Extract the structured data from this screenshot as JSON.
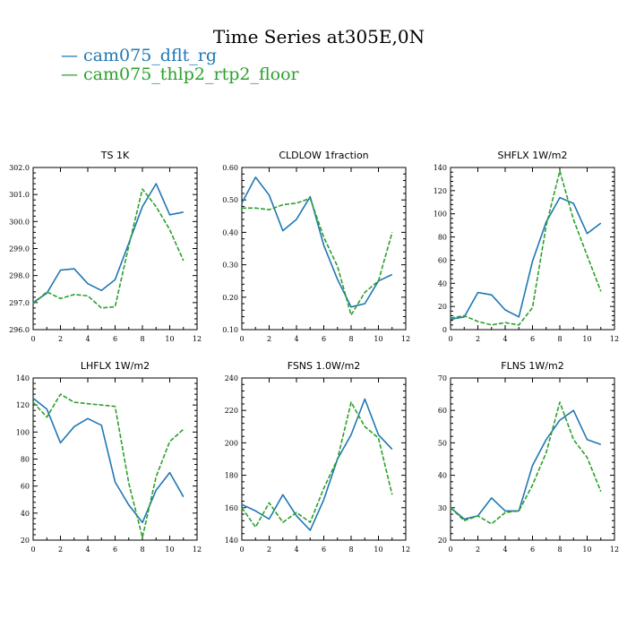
{
  "title": "Time Series at305E,0N",
  "legend": [
    {
      "label": "— cam075_dflt_rg",
      "color": "#1f77b4"
    },
    {
      "label": "— cam075_thlp2_rtp2_floor",
      "color": "#2ca02c"
    }
  ],
  "chart_data": [
    {
      "type": "line",
      "title": "TS   1K",
      "x": [
        0,
        1,
        2,
        3,
        4,
        5,
        6,
        7,
        8,
        9,
        10,
        11
      ],
      "xlim": [
        0,
        12
      ],
      "ylim": [
        296,
        302
      ],
      "xticks": [
        0,
        2,
        4,
        6,
        8,
        10,
        12
      ],
      "yticks": [
        296.0,
        297.0,
        298.0,
        299.0,
        300.0,
        301.0,
        302.0
      ],
      "ytick_labels": [
        "296.0",
        "297.0",
        "298.0",
        "299.0",
        "300.0",
        "301.0",
        "302.0"
      ],
      "series": [
        {
          "name": "cam075_dflt_rg",
          "color": "#1f77b4",
          "dash": "",
          "values": [
            297.0,
            297.35,
            298.2,
            298.25,
            297.7,
            297.45,
            297.85,
            299.2,
            300.55,
            301.4,
            300.25,
            300.35
          ]
        },
        {
          "name": "cam075_thlp2_rtp2_floor",
          "color": "#2ca02c",
          "dash": "5,2",
          "values": [
            296.95,
            297.4,
            297.15,
            297.3,
            297.25,
            296.8,
            296.85,
            299.1,
            301.2,
            300.55,
            299.7,
            298.55
          ]
        }
      ]
    },
    {
      "type": "line",
      "title": "CLDLOW   1fraction",
      "x": [
        0,
        1,
        2,
        3,
        4,
        5,
        6,
        7,
        8,
        9,
        10,
        11
      ],
      "xlim": [
        0,
        12
      ],
      "ylim": [
        0.1,
        0.6
      ],
      "xticks": [
        0,
        2,
        4,
        6,
        8,
        10,
        12
      ],
      "yticks": [
        0.1,
        0.2,
        0.3,
        0.4,
        0.5,
        0.6
      ],
      "ytick_labels": [
        "0.10",
        "0.20",
        "0.30",
        "0.40",
        "0.50",
        "0.60"
      ],
      "series": [
        {
          "name": "cam075_dflt_rg",
          "color": "#1f77b4",
          "dash": "",
          "values": [
            0.49,
            0.57,
            0.515,
            0.405,
            0.44,
            0.51,
            0.36,
            0.255,
            0.17,
            0.18,
            0.25,
            0.27
          ]
        },
        {
          "name": "cam075_thlp2_rtp2_floor",
          "color": "#2ca02c",
          "dash": "5,2",
          "values": [
            0.475,
            0.475,
            0.47,
            0.485,
            0.49,
            0.505,
            0.385,
            0.295,
            0.145,
            0.215,
            0.25,
            0.4
          ]
        }
      ]
    },
    {
      "type": "line",
      "title": "SHFLX   1W/m2",
      "x": [
        0,
        1,
        2,
        3,
        4,
        5,
        6,
        7,
        8,
        9,
        10,
        11
      ],
      "xlim": [
        0,
        12
      ],
      "ylim": [
        0,
        140
      ],
      "xticks": [
        0,
        2,
        4,
        6,
        8,
        10,
        12
      ],
      "yticks": [
        0,
        20,
        40,
        60,
        80,
        100,
        120,
        140
      ],
      "ytick_labels": [
        "0",
        "20",
        "40",
        "60",
        "80",
        "100",
        "120",
        "140"
      ],
      "series": [
        {
          "name": "cam075_dflt_rg",
          "color": "#1f77b4",
          "dash": "",
          "values": [
            9,
            11,
            32,
            30,
            17,
            11,
            59,
            93,
            114,
            109,
            83,
            92
          ]
        },
        {
          "name": "cam075_thlp2_rtp2_floor",
          "color": "#2ca02c",
          "dash": "5,2",
          "values": [
            10,
            12,
            7,
            4,
            6,
            4,
            19,
            90,
            137,
            95,
            64,
            33
          ]
        }
      ]
    },
    {
      "type": "line",
      "title": "LHFLX   1W/m2",
      "x": [
        0,
        1,
        2,
        3,
        4,
        5,
        6,
        7,
        8,
        9,
        10,
        11
      ],
      "xlim": [
        0,
        12
      ],
      "ylim": [
        20,
        140
      ],
      "xticks": [
        0,
        2,
        4,
        6,
        8,
        10,
        12
      ],
      "yticks": [
        20,
        40,
        60,
        80,
        100,
        120,
        140
      ],
      "ytick_labels": [
        "20",
        "40",
        "60",
        "80",
        "100",
        "120",
        "140"
      ],
      "series": [
        {
          "name": "cam075_dflt_rg",
          "color": "#1f77b4",
          "dash": "",
          "values": [
            125,
            117,
            92,
            104,
            110,
            105,
            63,
            46,
            33,
            57,
            70,
            52
          ]
        },
        {
          "name": "cam075_thlp2_rtp2_floor",
          "color": "#2ca02c",
          "dash": "5,2",
          "values": [
            122,
            111,
            128,
            122,
            121,
            120,
            119,
            62,
            22,
            67,
            93,
            102
          ]
        }
      ]
    },
    {
      "type": "line",
      "title": "FSNS   1.0W/m2",
      "x": [
        0,
        1,
        2,
        3,
        4,
        5,
        6,
        7,
        8,
        9,
        10,
        11
      ],
      "xlim": [
        0,
        12
      ],
      "ylim": [
        140,
        240
      ],
      "xticks": [
        0,
        2,
        4,
        6,
        8,
        10,
        12
      ],
      "yticks": [
        140,
        160,
        180,
        200,
        220,
        240
      ],
      "ytick_labels": [
        "140",
        "160",
        "180",
        "200",
        "220",
        "240"
      ],
      "series": [
        {
          "name": "cam075_dflt_rg",
          "color": "#1f77b4",
          "dash": "",
          "values": [
            162,
            158,
            153,
            168,
            155,
            146,
            165,
            190,
            205,
            227,
            205,
            196
          ]
        },
        {
          "name": "cam075_thlp2_rtp2_floor",
          "color": "#2ca02c",
          "dash": "5,2",
          "values": [
            160,
            148,
            163,
            151,
            157,
            151,
            172,
            190,
            225,
            210,
            203,
            168
          ]
        }
      ]
    },
    {
      "type": "line",
      "title": "FLNS   1W/m2",
      "x": [
        0,
        1,
        2,
        3,
        4,
        5,
        6,
        7,
        8,
        9,
        10,
        11
      ],
      "xlim": [
        0,
        12
      ],
      "ylim": [
        20,
        70
      ],
      "xticks": [
        0,
        2,
        4,
        6,
        8,
        10,
        12
      ],
      "yticks": [
        20,
        30,
        40,
        50,
        60,
        70
      ],
      "ytick_labels": [
        "20",
        "30",
        "40",
        "50",
        "60",
        "70"
      ],
      "series": [
        {
          "name": "cam075_dflt_rg",
          "color": "#1f77b4",
          "dash": "",
          "values": [
            30,
            26.5,
            27.5,
            33,
            29,
            29,
            43,
            51,
            57,
            60,
            51,
            49.5
          ]
        },
        {
          "name": "cam075_thlp2_rtp2_floor",
          "color": "#2ca02c",
          "dash": "5,2",
          "values": [
            30,
            26,
            27.5,
            25,
            28.5,
            29,
            37,
            47,
            62.5,
            51,
            45.5,
            35
          ]
        }
      ]
    }
  ]
}
